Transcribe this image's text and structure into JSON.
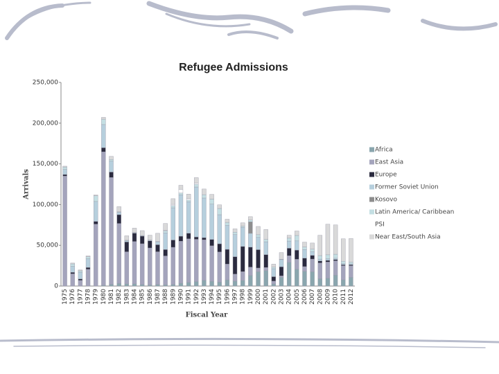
{
  "chart_data": {
    "type": "bar",
    "stacked": true,
    "title": "Refugee Admissions",
    "x_label": "Fiscal Year",
    "y_label": "Arrivals",
    "categories": [
      "1975",
      "1976",
      "1977",
      "1978",
      "1979",
      "1980",
      "1981",
      "1982",
      "1983",
      "1984",
      "1985",
      "1986",
      "1987",
      "1988",
      "1989",
      "1990",
      "1991",
      "1992",
      "1993",
      "1994",
      "1995",
      "1996",
      "1997",
      "1998",
      "1999",
      "2000",
      "2001",
      "2002",
      "2003",
      "2004",
      "2005",
      "2006",
      "2007",
      "2008",
      "2009",
      "2010",
      "2011",
      "2012"
    ],
    "ylim": [
      0,
      250000
    ],
    "yticks": [
      0,
      {
        "value": 50000,
        "label": "50,000"
      },
      {
        "value": 100000,
        "label": "100,000"
      },
      {
        "value": 150000,
        "label": "150,000"
      },
      {
        "value": 200000,
        "label": "200,000"
      },
      {
        "value": 250000,
        "label": "250,000"
      }
    ],
    "legend": "right",
    "series": [
      {
        "name": "Africa",
        "color": "#8aa6ae",
        "values": [
          0,
          0,
          0,
          0,
          0,
          955,
          2119,
          3326,
          2648,
          2747,
          1953,
          1315,
          1994,
          1588,
          1922,
          3494,
          4424,
          5491,
          6969,
          5860,
          4827,
          7604,
          6065,
          6887,
          13043,
          17561,
          19070,
          2551,
          10717,
          29110,
          20746,
          18185,
          17483,
          8935,
          9670,
          13305,
          7685,
          10608
        ]
      },
      {
        "name": "East Asia",
        "color": "#a4a4bc",
        "values": [
          135000,
          15000,
          7000,
          20574,
          76000,
          163799,
          131139,
          73522,
          39408,
          51960,
          49970,
          45454,
          40112,
          35371,
          45680,
          51611,
          53522,
          51899,
          49858,
          43564,
          36987,
          19321,
          8594,
          10854,
          10206,
          4561,
          3725,
          3512,
          1724,
          8079,
          12076,
          5659,
          15643,
          19489,
          19850,
          17716,
          17367,
          14366
        ]
      },
      {
        "name": "Europe",
        "color": "#2b2b3f",
        "values": [
          1947,
          1756,
          1755,
          2245,
          3393,
          5025,
          6704,
          10780,
          12083,
          10285,
          9350,
          8713,
          8606,
          7818,
          8948,
          6094,
          6837,
          2915,
          2582,
          7707,
          10070,
          18129,
          21401,
          30842,
          24497,
          22561,
          15794,
          5451,
          11260,
          9254,
          11316,
          10456,
          4560,
          2343,
          1997,
          1526,
          1228,
          1129
        ]
      },
      {
        "name": "Former Soviet Union",
        "color": "#b6cfdd",
        "values": [
          6211,
          7450,
          8191,
          10688,
          24449,
          28444,
          13444,
          2880,
          1409,
          715,
          640,
          787,
          3694,
          20421,
          39553,
          50716,
          38661,
          61298,
          48627,
          43470,
          35716,
          29536,
          27072,
          23349,
          16924,
          15103,
          15748,
          9771,
          8744,
          8765,
          11272,
          10456,
          4560,
          2343,
          1997,
          1526,
          1228,
          1129
        ]
      },
      {
        "name": "Kosovo",
        "color": "#8e8e8e",
        "values": [
          0,
          0,
          0,
          0,
          0,
          0,
          0,
          0,
          0,
          0,
          0,
          0,
          0,
          0,
          0,
          0,
          0,
          0,
          0,
          0,
          0,
          0,
          0,
          0,
          14280,
          0,
          0,
          0,
          0,
          0,
          0,
          0,
          0,
          0,
          0,
          0,
          0,
          0
        ]
      },
      {
        "name": "Latin America/ Caribbean",
        "color": "#c4dfe3",
        "values": [
          3000,
          3000,
          1800,
          2500,
          7000,
          6662,
          2017,
          602,
          668,
          160,
          138,
          173,
          315,
          2497,
          2605,
          2309,
          2225,
          3145,
          4126,
          6156,
          7629,
          3550,
          2996,
          1627,
          2110,
          3232,
          2975,
          1934,
          455,
          3577,
          6699,
          3264,
          2976,
          4277,
          4857,
          4982,
          2976,
          2078
        ]
      },
      {
        "name": "PSI",
        "color": "#ffffff",
        "values": [
          0,
          0,
          0,
          0,
          0,
          0,
          0,
          0,
          0,
          0,
          0,
          0,
          0,
          733,
          1550,
          4506,
          1789,
          1515,
          0,
          0,
          0,
          0,
          0,
          0,
          0,
          0,
          0,
          0,
          0,
          0,
          0,
          0,
          0,
          0,
          0,
          0,
          0,
          0
        ]
      },
      {
        "name": "Near East/South Asia",
        "color": "#d9d9d9",
        "values": [
          1000,
          1000,
          1000,
          1000,
          1000,
          2231,
          3829,
          6369,
          5465,
          5246,
          5994,
          5998,
          10021,
          8415,
          6980,
          4991,
          5359,
          6844,
          6987,
          5840,
          4490,
          3902,
          4101,
          4082,
          4098,
          10129,
          12060,
          3670,
          8235,
          3613,
          5495,
          5912,
          7600,
          25000,
          37500,
          36000,
          27500,
          29000
        ]
      }
    ]
  }
}
